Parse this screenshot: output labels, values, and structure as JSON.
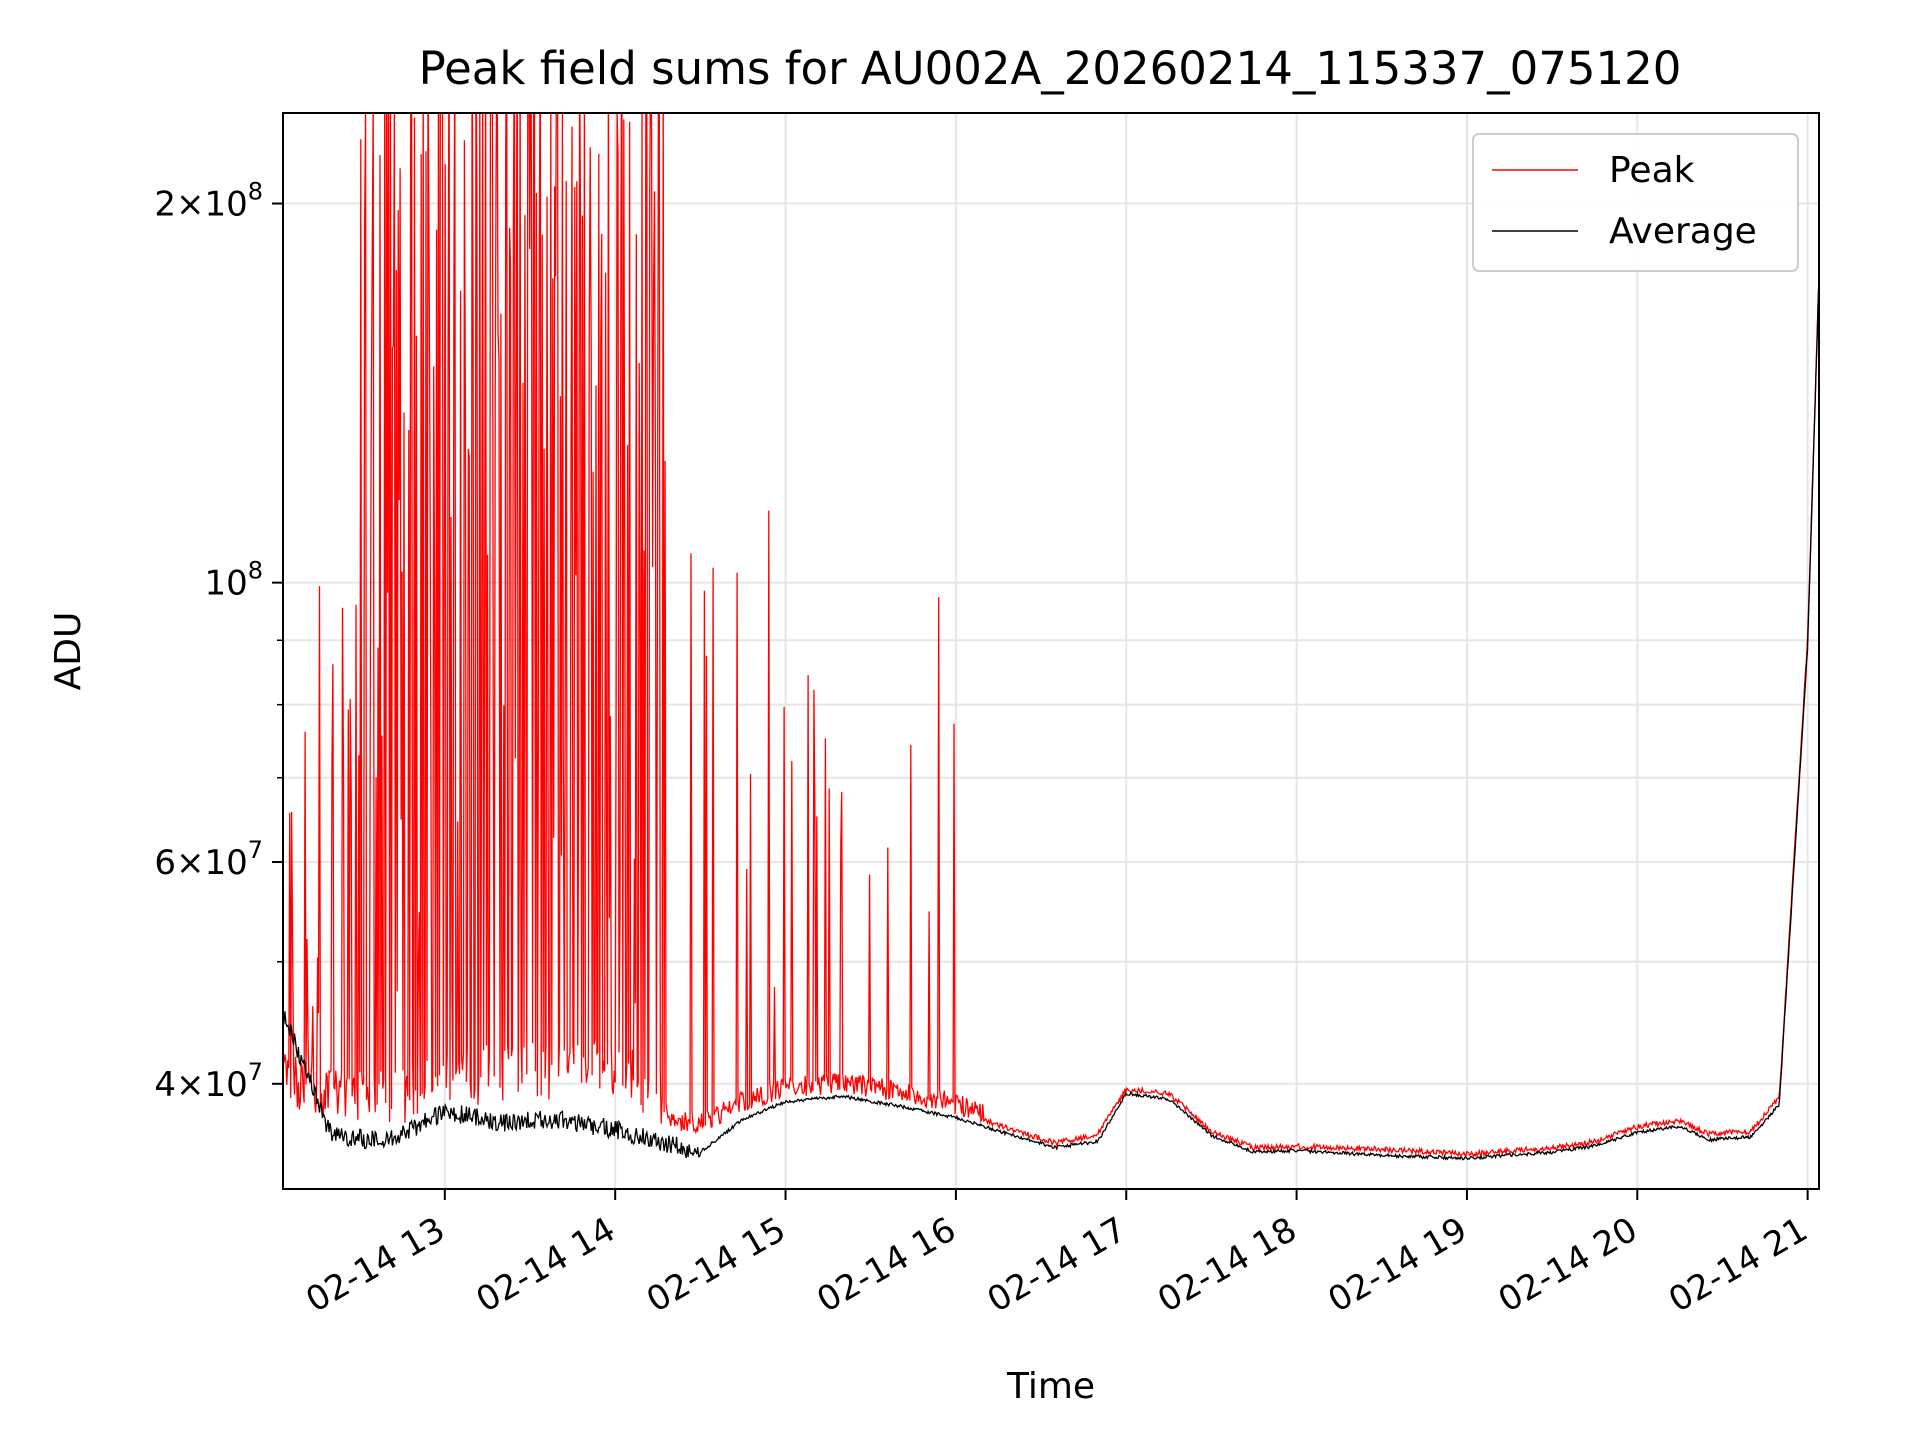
{
  "chart_data": {
    "type": "line",
    "title": "Peak field sums for AU002A_20260214_115337_075120",
    "xlabel": "Time",
    "ylabel": "ADU",
    "yscale": "log",
    "ylim": [
      33000000,
      236000000
    ],
    "xlim": [
      "2026-02-14T12:03",
      "2026-02-14T21:04"
    ],
    "grid": true,
    "legend_position": "top-right",
    "x_ticks": [
      {
        "t": "2026-02-14T13:00",
        "label": "02-14 13"
      },
      {
        "t": "2026-02-14T14:00",
        "label": "02-14 14"
      },
      {
        "t": "2026-02-14T15:00",
        "label": "02-14 15"
      },
      {
        "t": "2026-02-14T16:00",
        "label": "02-14 16"
      },
      {
        "t": "2026-02-14T17:00",
        "label": "02-14 17"
      },
      {
        "t": "2026-02-14T18:00",
        "label": "02-14 18"
      },
      {
        "t": "2026-02-14T19:00",
        "label": "02-14 19"
      },
      {
        "t": "2026-02-14T20:00",
        "label": "02-14 20"
      },
      {
        "t": "2026-02-14T21:00",
        "label": "02-14 21"
      }
    ],
    "y_ticks": [
      {
        "value": 40000000,
        "mant": "4",
        "exp": "7"
      },
      {
        "value": 60000000,
        "mant": "6",
        "exp": "7"
      },
      {
        "value": 100000000,
        "mant": "",
        "exp": "8"
      },
      {
        "value": 200000000,
        "mant": "2",
        "exp": "8"
      }
    ],
    "series": [
      {
        "name": "Peak",
        "color": "#ff0000",
        "x": [
          "2026-02-14T12:03",
          "2026-02-14T12:20",
          "2026-02-14T12:40",
          "2026-02-14T13:00",
          "2026-02-14T13:20",
          "2026-02-14T13:40",
          "2026-02-14T14:00",
          "2026-02-14T14:15",
          "2026-02-14T14:30",
          "2026-02-14T14:45",
          "2026-02-14T15:00",
          "2026-02-14T15:20",
          "2026-02-14T15:40",
          "2026-02-14T16:00",
          "2026-02-14T16:20",
          "2026-02-14T16:35",
          "2026-02-14T16:50",
          "2026-02-14T17:00",
          "2026-02-14T17:15",
          "2026-02-14T17:30",
          "2026-02-14T17:45",
          "2026-02-14T18:00",
          "2026-02-14T18:30",
          "2026-02-14T19:00",
          "2026-02-14T19:30",
          "2026-02-14T19:45",
          "2026-02-14T20:00",
          "2026-02-14T20:15",
          "2026-02-14T20:25",
          "2026-02-14T20:40",
          "2026-02-14T20:50",
          "2026-02-14T21:00",
          "2026-02-14T21:04"
        ],
        "y": [
          38500000,
          37500000,
          36800000,
          38000000,
          38500000,
          38800000,
          39000000,
          36800000,
          36500000,
          38000000,
          39000000,
          39300000,
          38700000,
          37800000,
          36600000,
          35700000,
          36300000,
          39400000,
          39100000,
          36500000,
          35400000,
          35500000,
          35300000,
          35000000,
          35400000,
          35800000,
          36800000,
          37200000,
          36300000,
          36500000,
          38800000,
          90000000,
          175000000
        ]
      },
      {
        "name": "Average",
        "color": "#000000",
        "x": [
          "2026-02-14T12:03",
          "2026-02-14T12:20",
          "2026-02-14T12:40",
          "2026-02-14T13:00",
          "2026-02-14T13:20",
          "2026-02-14T13:40",
          "2026-02-14T14:00",
          "2026-02-14T14:15",
          "2026-02-14T14:30",
          "2026-02-14T14:45",
          "2026-02-14T15:00",
          "2026-02-14T15:20",
          "2026-02-14T15:40",
          "2026-02-14T16:00",
          "2026-02-14T16:20",
          "2026-02-14T16:35",
          "2026-02-14T16:50",
          "2026-02-14T17:00",
          "2026-02-14T17:15",
          "2026-02-14T17:30",
          "2026-02-14T17:45",
          "2026-02-14T18:00",
          "2026-02-14T18:30",
          "2026-02-14T19:00",
          "2026-02-14T19:30",
          "2026-02-14T19:45",
          "2026-02-14T20:00",
          "2026-02-14T20:15",
          "2026-02-14T20:25",
          "2026-02-14T20:40",
          "2026-02-14T20:50",
          "2026-02-14T21:00",
          "2026-02-14T21:04"
        ],
        "y": [
          45500000,
          36400000,
          36000000,
          38000000,
          37300000,
          37500000,
          36800000,
          36000000,
          35300000,
          37500000,
          38700000,
          39100000,
          38400000,
          37600000,
          36400000,
          35600000,
          36000000,
          39300000,
          38900000,
          36400000,
          35300000,
          35400000,
          35100000,
          34900000,
          35300000,
          35700000,
          36600000,
          37000000,
          36100000,
          36300000,
          38500000,
          89000000,
          175000000
        ]
      }
    ]
  }
}
